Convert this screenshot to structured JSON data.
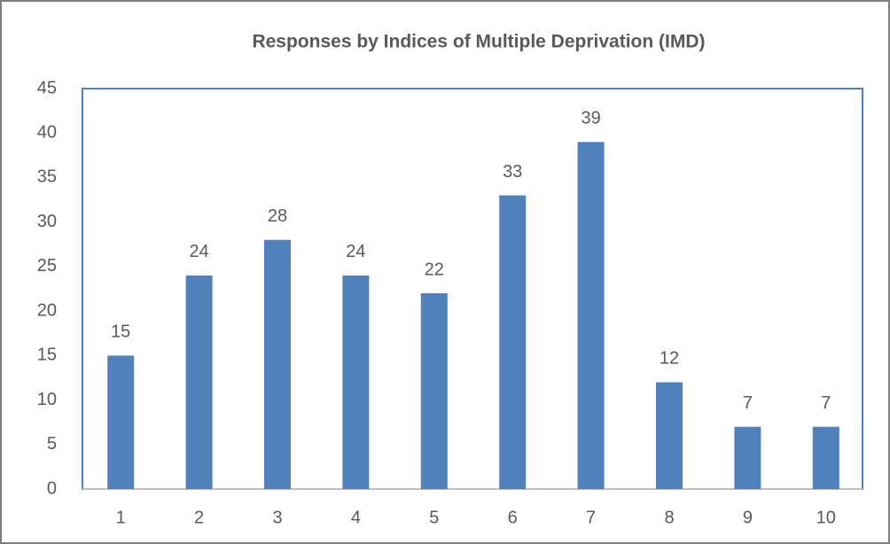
{
  "chart_data": {
    "type": "bar",
    "title": "Responses by Indices of Multiple  Deprivation (IMD)",
    "categories": [
      "1",
      "2",
      "3",
      "4",
      "5",
      "6",
      "7",
      "8",
      "9",
      "10"
    ],
    "values": [
      15,
      24,
      28,
      24,
      22,
      33,
      39,
      12,
      7,
      7
    ],
    "color": "#4f81bd",
    "ylim": [
      0,
      45
    ],
    "yticks": [
      0,
      5,
      10,
      15,
      20,
      25,
      30,
      35,
      40,
      45
    ],
    "grid": false,
    "data_labels": true
  }
}
